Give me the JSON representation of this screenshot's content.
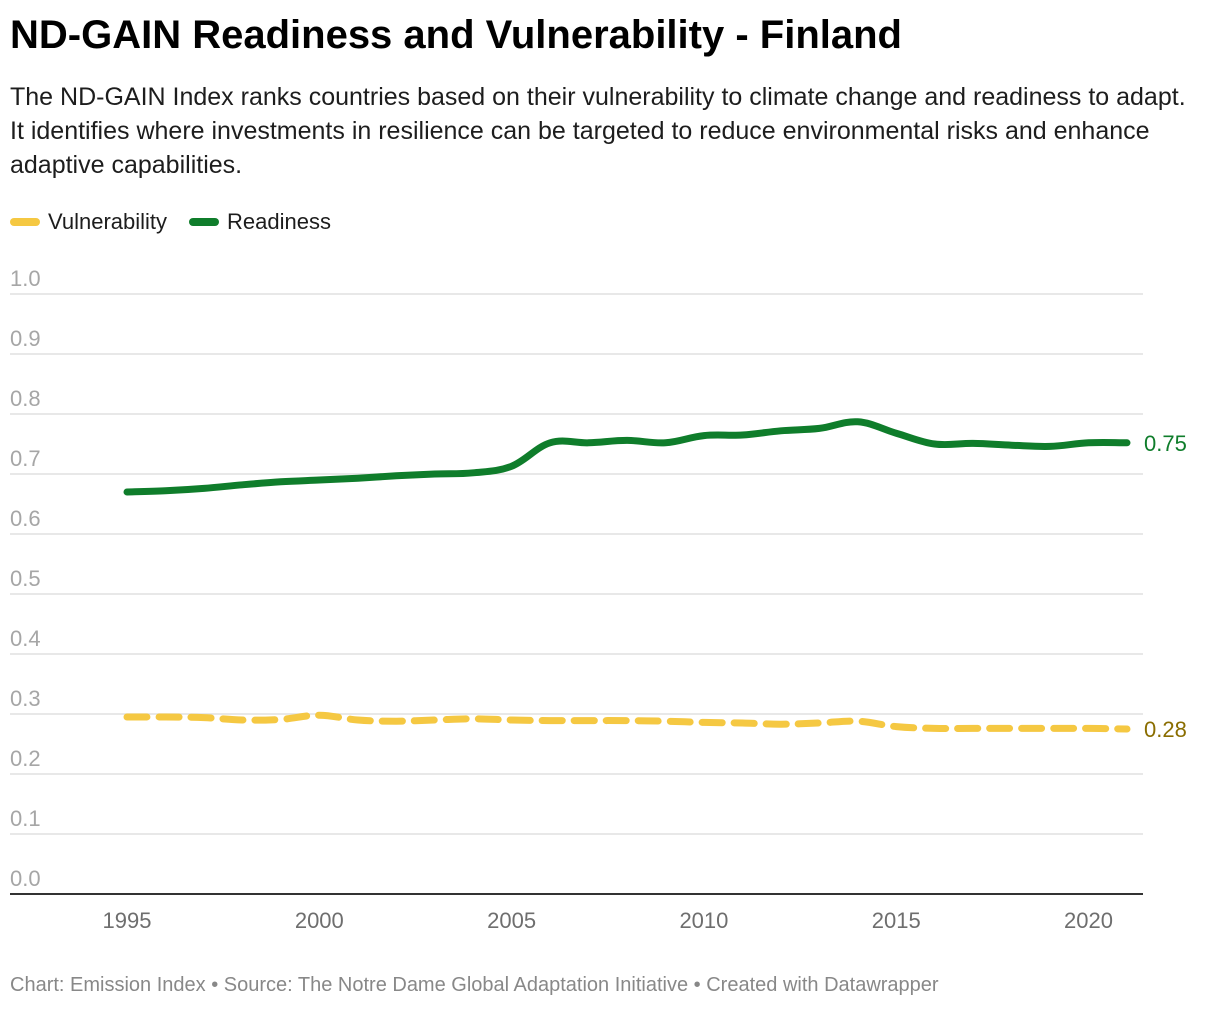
{
  "title": "ND-GAIN Readiness and Vulnerability - Finland",
  "subtitle": "The ND-GAIN Index ranks countries based on their vulnerability to climate change and readiness to adapt. It identifies where investments in resilience can be targeted to reduce environmental risks and enhance adaptive capabilities.",
  "legend": [
    {
      "label": "Vulnerability",
      "color": "#f5c842"
    },
    {
      "label": "Readiness",
      "color": "#0f7d2b"
    }
  ],
  "footer": {
    "chart": "Chart: Emission Index",
    "separator1": " • ",
    "source": "Source: The Notre Dame Global Adaptation Initiative",
    "separator2": " • ",
    "created": "Created with Datawrapper"
  },
  "chart_data": {
    "type": "line",
    "title": "ND-GAIN Readiness and Vulnerability - Finland",
    "xlabel": "",
    "ylabel": "",
    "xlim": [
      1995,
      2021
    ],
    "ylim": [
      0,
      1
    ],
    "grid": true,
    "legend_position": "top-left",
    "x_ticks": [
      1995,
      2000,
      2005,
      2010,
      2015,
      2020
    ],
    "y_ticks": [
      "0.0",
      "0.1",
      "0.2",
      "0.3",
      "0.4",
      "0.5",
      "0.6",
      "0.7",
      "0.8",
      "0.9",
      "1.0"
    ],
    "x": [
      1995,
      1996,
      1997,
      1998,
      1999,
      2000,
      2001,
      2002,
      2003,
      2004,
      2005,
      2006,
      2007,
      2008,
      2009,
      2010,
      2011,
      2012,
      2013,
      2014,
      2015,
      2016,
      2017,
      2018,
      2019,
      2020,
      2021
    ],
    "series": [
      {
        "name": "Vulnerability",
        "color": "#f5c842",
        "label_color": "#8a6d00",
        "style": "dashed",
        "end_label": "0.28",
        "values": [
          0.295,
          0.295,
          0.294,
          0.29,
          0.291,
          0.298,
          0.29,
          0.288,
          0.29,
          0.292,
          0.29,
          0.289,
          0.289,
          0.289,
          0.288,
          0.286,
          0.285,
          0.283,
          0.285,
          0.288,
          0.279,
          0.276,
          0.276,
          0.276,
          0.276,
          0.276,
          0.275
        ]
      },
      {
        "name": "Readiness",
        "color": "#0f7d2b",
        "label_color": "#0f7d2b",
        "style": "solid",
        "end_label": "0.75",
        "values": [
          0.67,
          0.672,
          0.676,
          0.682,
          0.687,
          0.69,
          0.693,
          0.697,
          0.7,
          0.702,
          0.713,
          0.752,
          0.752,
          0.756,
          0.752,
          0.764,
          0.765,
          0.772,
          0.776,
          0.787,
          0.768,
          0.75,
          0.751,
          0.748,
          0.746,
          0.752,
          0.752
        ]
      }
    ]
  }
}
